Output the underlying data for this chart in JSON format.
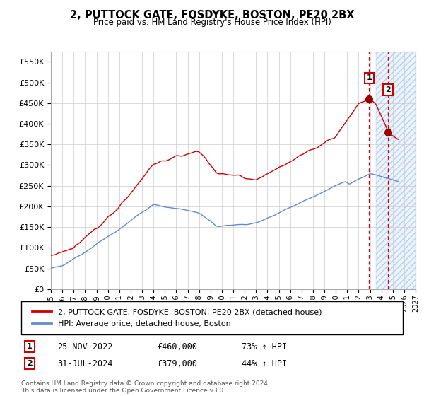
{
  "title": "2, PUTTOCK GATE, FOSDYKE, BOSTON, PE20 2BX",
  "subtitle": "Price paid vs. HM Land Registry's House Price Index (HPI)",
  "ylim": [
    0,
    575000
  ],
  "yticks": [
    0,
    50000,
    100000,
    150000,
    200000,
    250000,
    300000,
    350000,
    400000,
    450000,
    500000,
    550000
  ],
  "ytick_labels": [
    "£0",
    "£50K",
    "£100K",
    "£150K",
    "£200K",
    "£250K",
    "£300K",
    "£350K",
    "£400K",
    "£450K",
    "£500K",
    "£550K"
  ],
  "hpi_color": "#6688cc",
  "price_color": "#cc0000",
  "marker_color": "#990000",
  "bg_color": "#ffffff",
  "grid_color": "#cccccc",
  "legend_label_price": "2, PUTTOCK GATE, FOSDYKE, BOSTON, PE20 2BX (detached house)",
  "legend_label_hpi": "HPI: Average price, detached house, Boston",
  "annotation1_label": "1",
  "annotation1_date": "25-NOV-2022",
  "annotation1_price": "£460,000",
  "annotation1_hpi": "73% ↑ HPI",
  "annotation2_label": "2",
  "annotation2_date": "31-JUL-2024",
  "annotation2_price": "£379,000",
  "annotation2_hpi": "44% ↑ HPI",
  "copyright": "Contains HM Land Registry data © Crown copyright and database right 2024.\nThis data is licensed under the Open Government Licence v3.0.",
  "sale1_year": 2022.92,
  "sale1_value": 460000,
  "sale2_year": 2024.58,
  "sale2_value": 379000,
  "xlim_start": 1995,
  "xlim_end": 2027,
  "future_start": 2023.5
}
